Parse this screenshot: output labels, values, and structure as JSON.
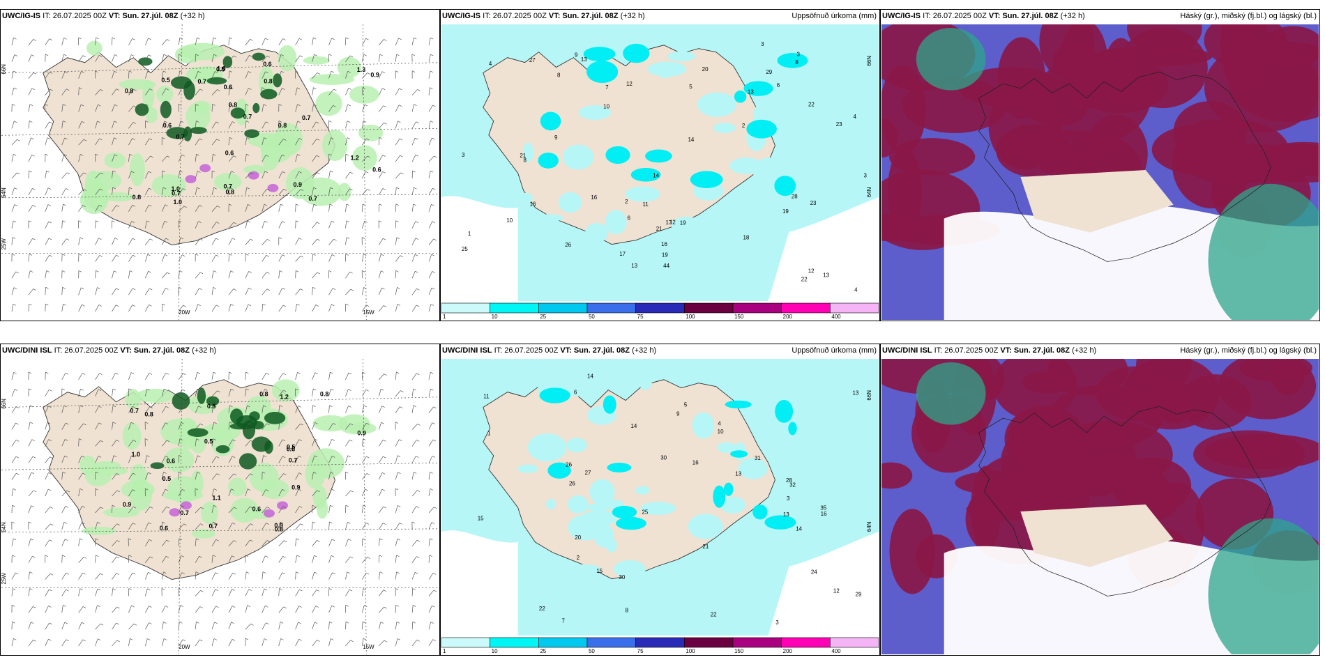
{
  "rows": [
    {
      "model": "UWC/IG-IS",
      "panels": [
        {
          "it": "IT: 26.07.2025 00Z",
          "vt_label": "VT:",
          "vt": "Sun. 27.júl. 08Z",
          "offset": "(+32 h)",
          "right": ""
        },
        {
          "it": "IT: 26.07.2025 00Z",
          "vt_label": "VT:",
          "vt": "Sun. 27.júl. 08Z",
          "offset": "(+32 h)",
          "right": "Uppsöfnuð úrkoma (mm)"
        },
        {
          "it": "IT: 26.07.2025 00Z",
          "vt_label": "VT:",
          "vt": "Sun. 27.júl. 08Z",
          "offset": "(+32 h)",
          "right": "Háský (gr.), miðský (fj.bl.) og lágský (bl.)"
        }
      ]
    },
    {
      "model": "UWC/DINI ISL",
      "panels": [
        {
          "it": "IT: 26.07.2025 00Z",
          "vt_label": "VT:",
          "vt": "Sun. 27.júl. 08Z",
          "offset": "(+32 h)",
          "right": ""
        },
        {
          "it": "IT: 26.07.2025 00Z",
          "vt_label": "VT:",
          "vt": "Sun. 27.júl. 08Z",
          "offset": "(+32 h)",
          "right": "Uppsöfnuð úrkoma (mm)"
        },
        {
          "it": "IT: 26.07.2025 00Z",
          "vt_label": "VT:",
          "vt": "Sun. 27.júl. 08Z",
          "offset": "(+32 h)",
          "right": "Háský (gr.), miðský (fj.bl.) og lágský (bl.)"
        }
      ]
    }
  ],
  "axis_labels": {
    "lon_20w": "20W",
    "lon_15w": "15W",
    "lat_66n": "66N",
    "lat_64n": "64N",
    "lon_25w": "25W"
  },
  "colorbar": {
    "ticks": [
      "1",
      "10",
      "25",
      "50",
      "75",
      "100",
      "150",
      "200",
      "400"
    ],
    "colors": [
      "#ccfafa",
      "#00f5f5",
      "#00c8ee",
      "#3b6eea",
      "#2a2ab8",
      "#6b0040",
      "#a8007e",
      "#ff00b4",
      "#f5b4f5"
    ]
  },
  "colors": {
    "land": "#efe2d3",
    "sea_precip": "#b6f6f6",
    "precip_cyan": "#00eef4",
    "wind_green_light": "#b8f0b0",
    "wind_green_dark": "#0d5a20",
    "cloud_high": "#8a1848",
    "cloud_mid": "#5d5dcc",
    "cloud_low_teal": "#2ea58a"
  },
  "rain_labels_top": [
    "3",
    "10",
    "14",
    "9",
    "8",
    "4",
    "6",
    "3",
    "1",
    "2",
    "3",
    "4",
    "2",
    "12",
    "11",
    "13",
    "23",
    "21",
    "14",
    "19",
    "17",
    "16",
    "13",
    "12",
    "9",
    "29",
    "23",
    "16",
    "25",
    "22",
    "44",
    "28",
    "27",
    "20",
    "19",
    "21",
    "19",
    "17",
    "10",
    "13",
    "22",
    "12",
    "8",
    "8",
    "7",
    "16",
    "18",
    "13",
    "26",
    "6",
    "5",
    "4",
    "3"
  ],
  "rain_labels_bottom": [
    "10",
    "14",
    "9",
    "7",
    "3",
    "13",
    "22",
    "30",
    "26",
    "28",
    "14",
    "13",
    "30",
    "16",
    "24",
    "27",
    "21",
    "32",
    "35",
    "31",
    "29",
    "25",
    "20",
    "13",
    "15",
    "22",
    "26",
    "16",
    "15",
    "11",
    "14",
    "12",
    "8",
    "6",
    "5",
    "4",
    "3",
    "2",
    "1"
  ],
  "wind_labels_top": [
    "0.8",
    "1.0",
    "0.8",
    "0.7",
    "0.9",
    "0.6",
    "1.3",
    "0.8",
    "0.7",
    "0.6",
    "1.2",
    "0.8",
    "0.7",
    "0.7",
    "1.0",
    "0.7",
    "0.6",
    "0.8",
    "0.5",
    "0.7",
    "0.6",
    "0.9",
    "1.0",
    "0.5",
    "0.6",
    "0.7",
    "0.8"
  ],
  "wind_labels_bottom": [
    "0.8",
    "0.9",
    "0.8",
    "0.7",
    "0.6",
    "1.1",
    "0.5",
    "0.8",
    "1.2",
    "0.7",
    "0.9",
    "0.5",
    "0.6",
    "0.9",
    "0.8",
    "0.7",
    "0.6",
    "0.5",
    "1.0",
    "0.7",
    "0.9",
    "0.6",
    "0.8"
  ]
}
